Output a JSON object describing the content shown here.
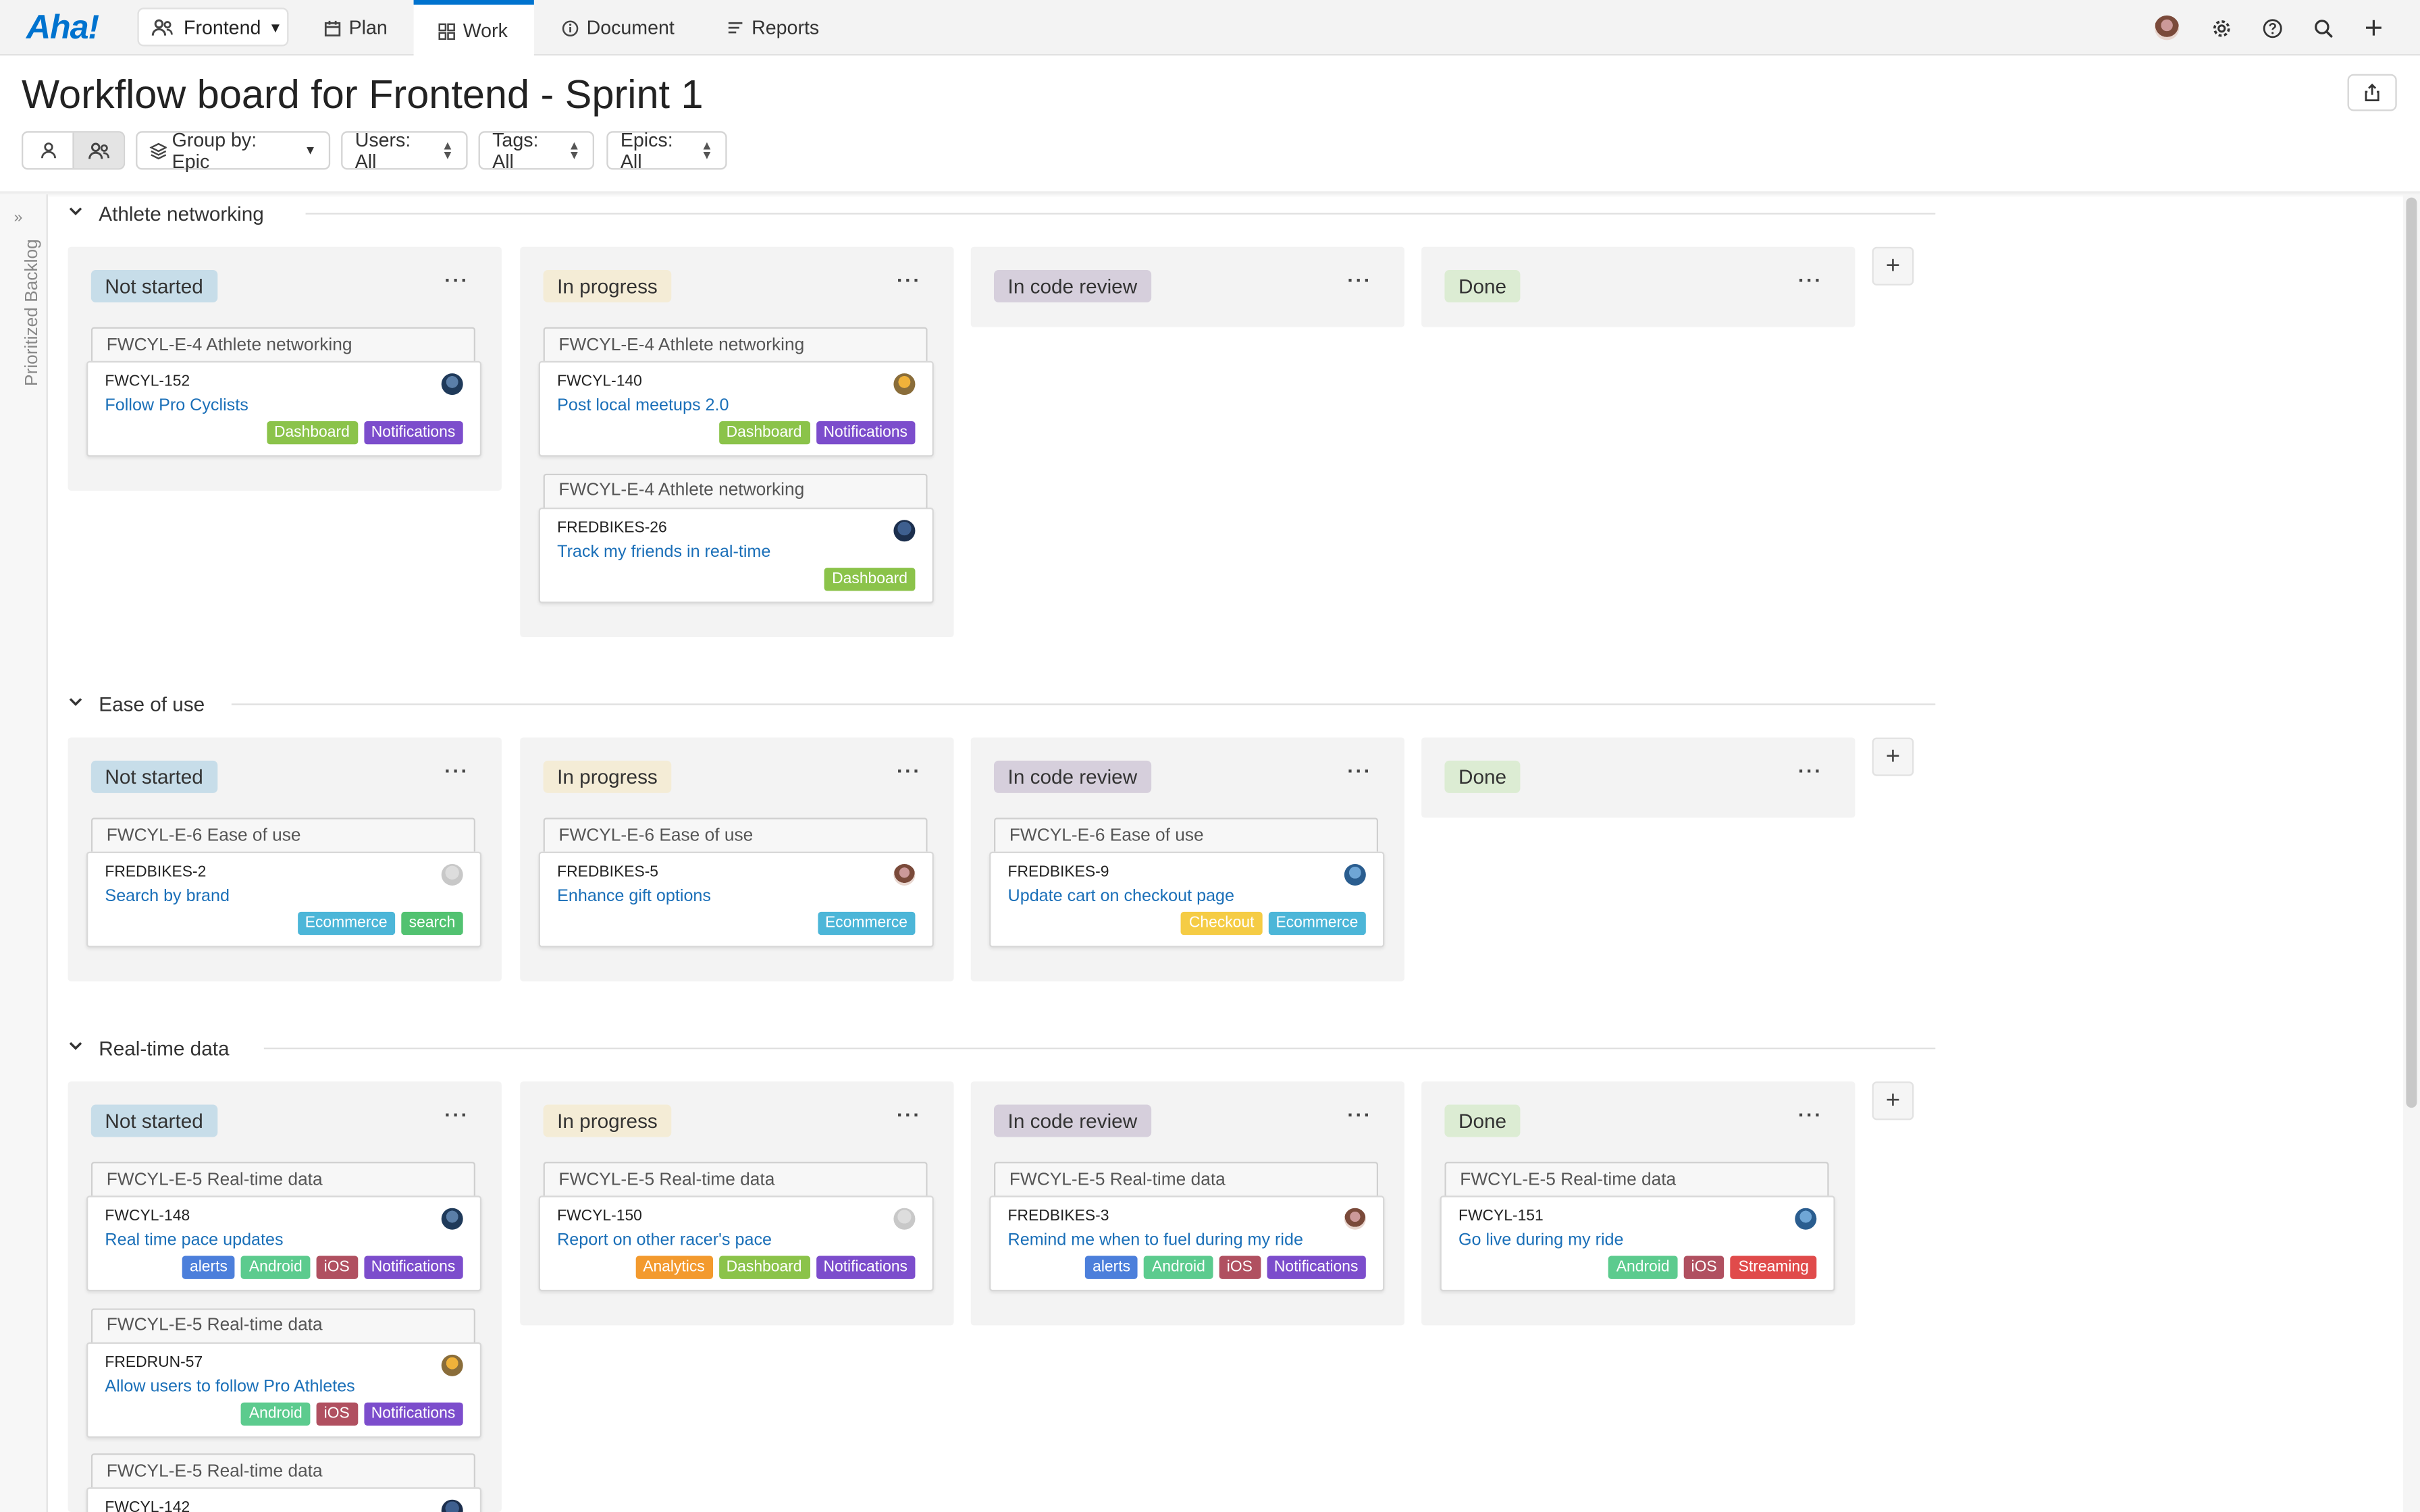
{
  "app": {
    "logo": "Aha!",
    "workspace": "Frontend",
    "tabs": [
      {
        "label": "Plan"
      },
      {
        "label": "Work"
      },
      {
        "label": "Document"
      },
      {
        "label": "Reports"
      }
    ]
  },
  "header": {
    "title": "Workflow board for Frontend - Sprint 1",
    "filters": {
      "group_by": "Group by: Epic",
      "users": "Users: All",
      "tags": "Tags: All",
      "epics": "Epics: All"
    }
  },
  "side": {
    "label": "Prioritized Backlog"
  },
  "columns": [
    "Not started",
    "In progress",
    "In code review",
    "Done"
  ],
  "column_colors": {
    "Not started": "#c7dde9",
    "In progress": "#f4ecd6",
    "In code review": "#d6cfdc",
    "Done": "#dcecd3"
  },
  "tag_colors": {
    "Dashboard": "#8bc34a",
    "Notifications": "#7c4dcc",
    "Ecommerce": "#4cb6d8",
    "search": "#52c271",
    "Checkout": "#f5cc45",
    "alerts": "#4c7fdb",
    "Android": "#5ccb8e",
    "iOS": "#b05060",
    "Analytics": "#f39a2e",
    "Streaming": "#e04b4b"
  },
  "lanes": [
    {
      "name": "Athlete networking",
      "cards": [
        [
          {
            "epic": "FWCYL-E-4 Athlete networking",
            "key": "FWCYL-152",
            "name": "Follow Pro Cyclists",
            "tags": [
              "Dashboard",
              "Notifications"
            ]
          }
        ],
        [
          {
            "epic": "FWCYL-E-4 Athlete networking",
            "key": "FWCYL-140",
            "name": "Post local meetups 2.0",
            "tags": [
              "Dashboard",
              "Notifications"
            ]
          },
          {
            "epic": "FWCYL-E-4 Athlete networking",
            "key": "FREDBIKES-26",
            "name": "Track my friends in real-time",
            "tags": [
              "Dashboard"
            ]
          }
        ],
        [],
        []
      ]
    },
    {
      "name": "Ease of use",
      "cards": [
        [
          {
            "epic": "FWCYL-E-6 Ease of use",
            "key": "FREDBIKES-2",
            "name": "Search by brand",
            "tags": [
              "Ecommerce",
              "search"
            ]
          }
        ],
        [
          {
            "epic": "FWCYL-E-6 Ease of use",
            "key": "FREDBIKES-5",
            "name": "Enhance gift options",
            "tags": [
              "Ecommerce"
            ]
          }
        ],
        [
          {
            "epic": "FWCYL-E-6 Ease of use",
            "key": "FREDBIKES-9",
            "name": "Update cart on checkout page",
            "tags": [
              "Checkout",
              "Ecommerce"
            ]
          }
        ],
        []
      ]
    },
    {
      "name": "Real-time data",
      "cards": [
        [
          {
            "epic": "FWCYL-E-5 Real-time data",
            "key": "FWCYL-148",
            "name": "Real time pace updates",
            "tags": [
              "alerts",
              "Android",
              "iOS",
              "Notifications"
            ]
          },
          {
            "epic": "FWCYL-E-5 Real-time data",
            "key": "FREDRUN-57",
            "name": "Allow users to follow Pro Athletes",
            "tags": [
              "Android",
              "iOS",
              "Notifications"
            ]
          },
          {
            "epic": "FWCYL-E-5 Real-time data",
            "key": "FWCYL-142",
            "name": "",
            "tags": []
          }
        ],
        [
          {
            "epic": "FWCYL-E-5 Real-time data",
            "key": "FWCYL-150",
            "name": "Report on other racer's pace",
            "tags": [
              "Analytics",
              "Dashboard",
              "Notifications"
            ]
          }
        ],
        [
          {
            "epic": "FWCYL-E-5 Real-time data",
            "key": "FREDBIKES-3",
            "name": "Remind me when to fuel during my ride",
            "tags": [
              "alerts",
              "Android",
              "iOS",
              "Notifications"
            ]
          }
        ],
        [
          {
            "epic": "FWCYL-E-5 Real-time data",
            "key": "FWCYL-151",
            "name": "Go live during my ride",
            "tags": [
              "Android",
              "iOS",
              "Streaming"
            ]
          }
        ]
      ]
    }
  ]
}
